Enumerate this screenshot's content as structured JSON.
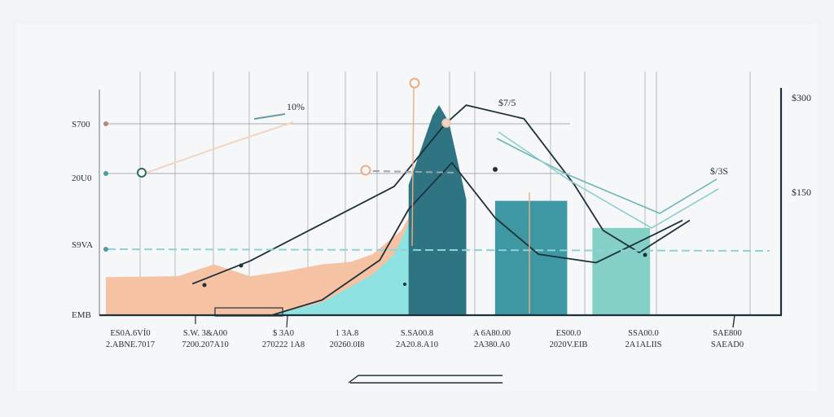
{
  "chart_data": {
    "type": "area",
    "title": "",
    "xlabel": "",
    "ylabel": "",
    "grid": true,
    "legend": "none",
    "y_tick_labels": [
      "S700",
      "20U0",
      "S9VA",
      "EMB"
    ],
    "y_tick_labels_right": [
      "$300",
      "$150"
    ],
    "x_tick_labels": [
      {
        "line1": "ES0A.6VÍ0",
        "line2": "2.ABNE.7017"
      },
      {
        "line1": "S.W. 3&A00",
        "line2": "7200.207A10"
      },
      {
        "line1": "$ 3A0",
        "line2": "270222 1A8"
      },
      {
        "line1": "1 3A.8",
        "line2": "20260.0I8"
      },
      {
        "line1": "S.SA00.8",
        "line2": "2A20.8.A10"
      },
      {
        "line1": "A 6A80.00",
        "line2": "2A380.A0"
      },
      {
        "line1": "ES00.0",
        "line2": "2020V.EIB"
      },
      {
        "line1": "SSA00.0",
        "line2": "2A1ALIIS"
      },
      {
        "line1": "SAE800",
        "line2": "SAEAD0"
      }
    ],
    "annotations": [
      "10%",
      "$7/5",
      "$/3S"
    ],
    "colors": {
      "peach": "#f6c2a4",
      "aqua": "#8fe2e2",
      "dark_teal": "#2f7482",
      "mid_teal": "#3d98a3",
      "seafoam": "#84cfc6",
      "curve": "#1e3039",
      "accent": "#ecae82"
    },
    "series": [
      {
        "type": "area",
        "color": "peach",
        "points": [
          [
            0,
            45
          ],
          [
            1,
            46
          ],
          [
            1.5,
            60
          ],
          [
            2,
            46
          ],
          [
            2.5,
            52
          ],
          [
            3,
            60
          ],
          [
            3.4,
            63
          ],
          [
            3.7,
            72
          ],
          [
            4.1,
            100
          ],
          [
            4.5,
            160
          ]
        ]
      },
      {
        "type": "area",
        "color": "aqua",
        "points": [
          [
            2.3,
            0
          ],
          [
            3,
            15
          ],
          [
            3.7,
            48
          ],
          [
            4,
            72
          ],
          [
            4.2,
            108
          ],
          [
            4.5,
            135
          ]
        ]
      },
      {
        "type": "bar",
        "color": "dark_teal",
        "x_range": [
          4.2,
          5
        ],
        "value": 248
      },
      {
        "type": "bar",
        "color": "mid_teal",
        "x_range": [
          5.4,
          6.4
        ],
        "value": 135
      },
      {
        "type": "bar",
        "color": "seafoam",
        "x_range": [
          6.75,
          7.55
        ],
        "value": 103
      },
      {
        "type": "line",
        "color": "curve",
        "points": [
          [
            1.2,
            37
          ],
          [
            2,
            64
          ],
          [
            3,
            108
          ],
          [
            4,
            152
          ],
          [
            4.7,
            225
          ],
          [
            5,
            248
          ],
          [
            5.8,
            232
          ],
          [
            6.5,
            154
          ],
          [
            6.9,
            100
          ],
          [
            7.4,
            74
          ],
          [
            8.1,
            112
          ]
        ]
      },
      {
        "type": "line",
        "color": "curve",
        "points": [
          [
            2.3,
            0
          ],
          [
            3,
            18
          ],
          [
            3.8,
            65
          ],
          [
            4.2,
            125
          ],
          [
            4.8,
            180
          ],
          [
            5.4,
            115
          ],
          [
            6,
            72
          ],
          [
            6.8,
            62
          ],
          [
            7.6,
            95
          ],
          [
            8,
            112
          ]
        ]
      }
    ]
  }
}
